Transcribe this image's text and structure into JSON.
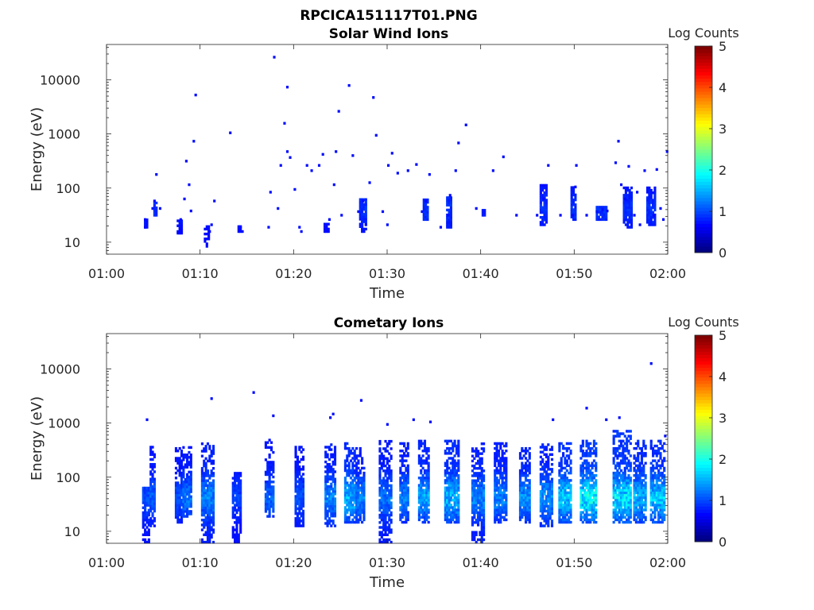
{
  "figure": {
    "title": "RPCICA151117T01.PNG"
  },
  "chart_data": [
    {
      "type": "heatmap",
      "title": "Solar Wind Ions",
      "xlabel": "Time",
      "ylabel": "Energy (eV)",
      "x_ticks": [
        "01:00",
        "01:10",
        "01:20",
        "01:30",
        "01:40",
        "01:50",
        "02:00"
      ],
      "xlim_minutes": [
        0,
        60
      ],
      "y_scale": "log",
      "y_ticks": [
        "10",
        "100",
        "1000",
        "10000"
      ],
      "ylim": [
        6,
        45000
      ],
      "colorbar": {
        "label": "Log Counts",
        "ticks": [
          "0",
          "1",
          "2",
          "3",
          "4",
          "5"
        ],
        "range": [
          0,
          5
        ],
        "colormap": "jet"
      },
      "points": [
        [
          4,
          18,
          0.2
        ],
        [
          4,
          25,
          0.2
        ],
        [
          4.8,
          40,
          0.2
        ],
        [
          5,
          55,
          0.2
        ],
        [
          5.2,
          170,
          0.2
        ],
        [
          5.6,
          40,
          0.2
        ],
        [
          7.5,
          15,
          0.2
        ],
        [
          7.8,
          25,
          0.2
        ],
        [
          8.2,
          60,
          0.2
        ],
        [
          8.4,
          300,
          0.2
        ],
        [
          8.7,
          110,
          0.2
        ],
        [
          8.9,
          36,
          0.2
        ],
        [
          9.2,
          700,
          0.2
        ],
        [
          9.4,
          5000,
          0.2
        ],
        [
          10.6,
          8,
          0.2
        ],
        [
          10.9,
          15,
          0.2
        ],
        [
          11.1,
          20,
          0.2
        ],
        [
          11.4,
          55,
          0.2
        ],
        [
          13.1,
          1000,
          0.2
        ],
        [
          14.2,
          18,
          0.2
        ],
        [
          14.4,
          15,
          0.2
        ],
        [
          17.2,
          18,
          0.2
        ],
        [
          17.4,
          80,
          0.2
        ],
        [
          17.8,
          25000,
          0.2
        ],
        [
          18.2,
          40,
          0.2
        ],
        [
          18.5,
          250,
          0.2
        ],
        [
          18.9,
          1500,
          0.2
        ],
        [
          19.2,
          7000,
          0.2
        ],
        [
          19.2,
          450,
          0.2
        ],
        [
          19.5,
          350,
          0.2
        ],
        [
          20,
          90,
          0.2
        ],
        [
          20.5,
          18,
          0.2
        ],
        [
          20.7,
          15,
          0.2
        ],
        [
          21.3,
          250,
          0.2
        ],
        [
          21.8,
          200,
          0.2
        ],
        [
          22.6,
          250,
          0.2
        ],
        [
          23,
          400,
          0.2
        ],
        [
          23.4,
          18,
          0.2
        ],
        [
          23.7,
          25,
          0.2
        ],
        [
          24.2,
          110,
          0.2
        ],
        [
          24.4,
          450,
          0.2
        ],
        [
          24.7,
          2500,
          0.2
        ],
        [
          25,
          30,
          0.2
        ],
        [
          25.8,
          7500,
          0.2
        ],
        [
          26.2,
          380,
          0.2
        ],
        [
          26.8,
          35,
          0.2
        ],
        [
          27.3,
          55,
          0.2
        ],
        [
          27.6,
          20,
          0.2
        ],
        [
          28,
          120,
          0.2
        ],
        [
          28.4,
          4500,
          0.2
        ],
        [
          28.7,
          900,
          0.2
        ],
        [
          29.4,
          35,
          0.2
        ],
        [
          29.9,
          20,
          0.2
        ],
        [
          30,
          250,
          0.2
        ],
        [
          30.4,
          420,
          0.2
        ],
        [
          31,
          180,
          0.2
        ],
        [
          32.1,
          200,
          0.2
        ],
        [
          33,
          260,
          0.2
        ],
        [
          33.6,
          35,
          0.2
        ],
        [
          34,
          55,
          0.2
        ],
        [
          34.4,
          170,
          0.2
        ],
        [
          35.6,
          18,
          0.2
        ],
        [
          36.4,
          30,
          0.2
        ],
        [
          36.6,
          70,
          0.2
        ],
        [
          37.2,
          200,
          0.2
        ],
        [
          37.5,
          650,
          0.2
        ],
        [
          38.3,
          1400,
          0.2
        ],
        [
          39.4,
          40,
          0.2
        ],
        [
          41.2,
          200,
          0.2
        ],
        [
          42.3,
          360,
          0.2
        ],
        [
          43.7,
          30,
          0.2
        ],
        [
          45.9,
          30,
          0.2
        ],
        [
          46.6,
          60,
          0.2
        ],
        [
          47.1,
          250,
          0.2
        ],
        [
          48.4,
          30,
          0.2
        ],
        [
          49.7,
          30,
          0.2
        ],
        [
          50,
          100,
          0.2
        ],
        [
          50.1,
          250,
          0.2
        ],
        [
          51.2,
          30,
          0.2
        ],
        [
          52.3,
          35,
          0.2
        ],
        [
          52.9,
          38,
          0.2
        ],
        [
          53.4,
          36,
          0.2
        ],
        [
          54.3,
          280,
          0.2
        ],
        [
          54.6,
          700,
          0.2
        ],
        [
          54.9,
          110,
          0.2
        ],
        [
          55.3,
          60,
          0.2
        ],
        [
          55.7,
          240,
          0.2
        ],
        [
          56.3,
          30,
          0.2
        ],
        [
          56.6,
          80,
          0.2
        ],
        [
          56.9,
          20,
          0.2
        ],
        [
          57.4,
          200,
          0.2
        ],
        [
          57.7,
          80,
          0.2
        ],
        [
          58.4,
          30,
          0.2
        ],
        [
          58.7,
          210,
          0.2
        ],
        [
          59.1,
          40,
          0.2
        ],
        [
          59.4,
          25,
          0.2
        ],
        [
          59.8,
          450,
          0.2
        ]
      ],
      "columns": [
        [
          4.0,
          4.3,
          25,
          18,
          0.2
        ],
        [
          5.0,
          5.3,
          55,
          30,
          0.3
        ],
        [
          7.5,
          7.9,
          25,
          14,
          0.2
        ],
        [
          10.4,
          10.8,
          20,
          8,
          0.2
        ],
        [
          14.0,
          14.3,
          20,
          15,
          0.2
        ],
        [
          23.2,
          23.6,
          22,
          15,
          0.2
        ],
        [
          27.0,
          27.6,
          60,
          15,
          0.3
        ],
        [
          33.8,
          34.3,
          60,
          25,
          0.3
        ],
        [
          36.3,
          36.8,
          70,
          18,
          0.3
        ],
        [
          40.1,
          40.4,
          40,
          30,
          0.2
        ],
        [
          46.3,
          46.9,
          110,
          20,
          0.3
        ],
        [
          49.6,
          50.1,
          100,
          25,
          0.3
        ],
        [
          52.3,
          53.3,
          45,
          25,
          0.3
        ],
        [
          55.2,
          56.0,
          100,
          18,
          0.3
        ],
        [
          57.7,
          58.6,
          100,
          20,
          0.3
        ]
      ]
    },
    {
      "type": "heatmap",
      "title": "Cometary Ions",
      "xlabel": "Time",
      "ylabel": "Energy (eV)",
      "x_ticks": [
        "01:00",
        "01:10",
        "01:20",
        "01:30",
        "01:40",
        "01:50",
        "02:00"
      ],
      "xlim_minutes": [
        0,
        60
      ],
      "y_scale": "log",
      "y_ticks": [
        "10",
        "100",
        "1000",
        "10000"
      ],
      "ylim": [
        6,
        45000
      ],
      "colorbar": {
        "label": "Log Counts",
        "ticks": [
          "0",
          "1",
          "2",
          "3",
          "4",
          "5"
        ],
        "range": [
          0,
          5
        ],
        "colormap": "jet"
      },
      "columns": [
        [
          3.8,
          4.4,
          60,
          6,
          0.5
        ],
        [
          4.6,
          5.1,
          350,
          12,
          0.6
        ],
        [
          7.3,
          7.9,
          350,
          14,
          0.5
        ],
        [
          8.1,
          8.9,
          350,
          18,
          0.7
        ],
        [
          10.1,
          11.4,
          400,
          6,
          0.8
        ],
        [
          13.4,
          14.3,
          120,
          6,
          0.4
        ],
        [
          16.9,
          17.8,
          500,
          18,
          0.6
        ],
        [
          20.1,
          20.9,
          350,
          12,
          0.5
        ],
        [
          23.3,
          24.4,
          400,
          12,
          0.8
        ],
        [
          25.4,
          26.4,
          420,
          14,
          1.1
        ],
        [
          26.6,
          27.5,
          350,
          14,
          0.8
        ],
        [
          29.1,
          30.4,
          450,
          6,
          0.7
        ],
        [
          31.3,
          32.2,
          420,
          14,
          0.8
        ],
        [
          33.3,
          34.4,
          450,
          14,
          1.0
        ],
        [
          36.1,
          37.6,
          450,
          14,
          1.1
        ],
        [
          39.0,
          40.2,
          420,
          6,
          0.8
        ],
        [
          41.4,
          42.6,
          420,
          14,
          0.8
        ],
        [
          44.1,
          45.2,
          350,
          14,
          0.9
        ],
        [
          46.3,
          47.5,
          420,
          12,
          0.9
        ],
        [
          48.3,
          49.6,
          400,
          14,
          1.2
        ],
        [
          50.6,
          52.2,
          450,
          14,
          1.5
        ],
        [
          54.1,
          55.9,
          700,
          14,
          1.4
        ],
        [
          56.3,
          57.6,
          450,
          14,
          1.1
        ],
        [
          58.1,
          59.6,
          450,
          14,
          1.2
        ]
      ],
      "points": [
        [
          4.2,
          1100,
          0.2
        ],
        [
          11.1,
          2700,
          0.2
        ],
        [
          15.6,
          3500,
          0.2
        ],
        [
          17.7,
          1300,
          0.2
        ],
        [
          23.8,
          1200,
          0.2
        ],
        [
          24.1,
          1400,
          0.2
        ],
        [
          27.1,
          2500,
          0.2
        ],
        [
          29.9,
          900,
          0.2
        ],
        [
          32.7,
          1100,
          0.2
        ],
        [
          34.5,
          1000,
          0.2
        ],
        [
          47.6,
          1100,
          0.2
        ],
        [
          51.2,
          1800,
          0.2
        ],
        [
          53.3,
          1100,
          0.2
        ],
        [
          54.7,
          1200,
          0.2
        ],
        [
          58.1,
          12000,
          0.2
        ],
        [
          59.6,
          550,
          0.2
        ]
      ]
    }
  ]
}
